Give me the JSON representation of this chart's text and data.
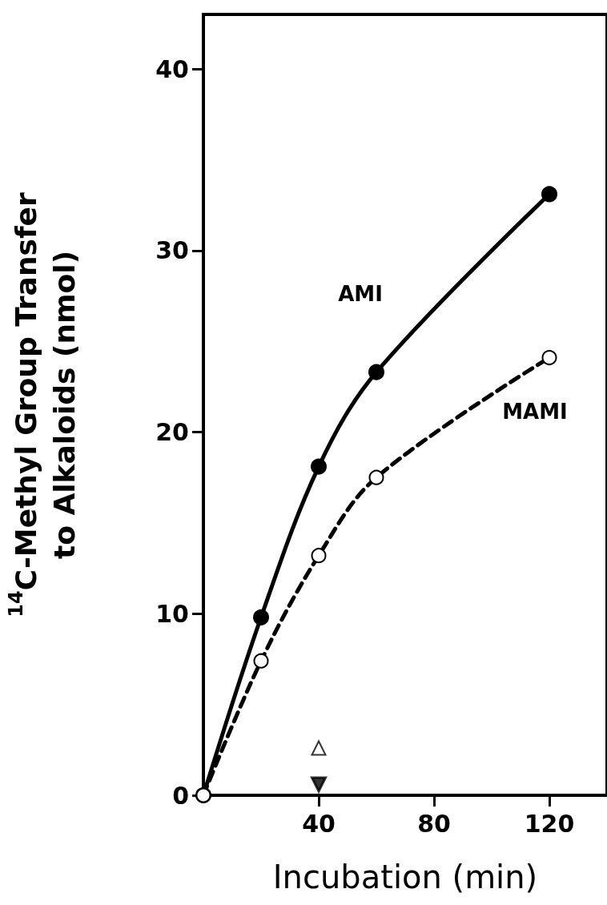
{
  "chart_data": {
    "type": "line",
    "xlabel": "Incubation (min)",
    "ylabel": "$^{14}$C-Methyl Group Transfer\nto Alkaloids (nmol)",
    "xlim": [
      0,
      140
    ],
    "xticks": [
      40,
      80,
      120
    ],
    "ylim": [
      0,
      43
    ],
    "yticks": [
      0,
      10,
      20,
      30,
      40
    ],
    "grid": false,
    "legend": false,
    "series": [
      {
        "name": "AMI",
        "color": "#000000",
        "x": [
          0,
          20,
          40,
          60,
          120
        ],
        "values": [
          0,
          9.8,
          18.1,
          23.3,
          33.1
        ],
        "marker": "circle",
        "line_style": "solid"
      },
      {
        "name": "MAMI",
        "color": "#000000",
        "x": [
          0,
          20,
          40,
          60,
          120
        ],
        "values": [
          0,
          7.4,
          13.2,
          17.5,
          24.1
        ],
        "marker": "circle_open",
        "line_style": "dashed"
      },
      {
        "type": "scatter",
        "color": "#000000",
        "x": [
          40
        ],
        "values": [
          2.6
        ],
        "marker": "triangle_open"
      },
      {
        "type": "scatter",
        "color": "#000000",
        "x": [
          40
        ],
        "values": [
          0.6
        ],
        "marker": "triangle_down"
      }
    ]
  }
}
